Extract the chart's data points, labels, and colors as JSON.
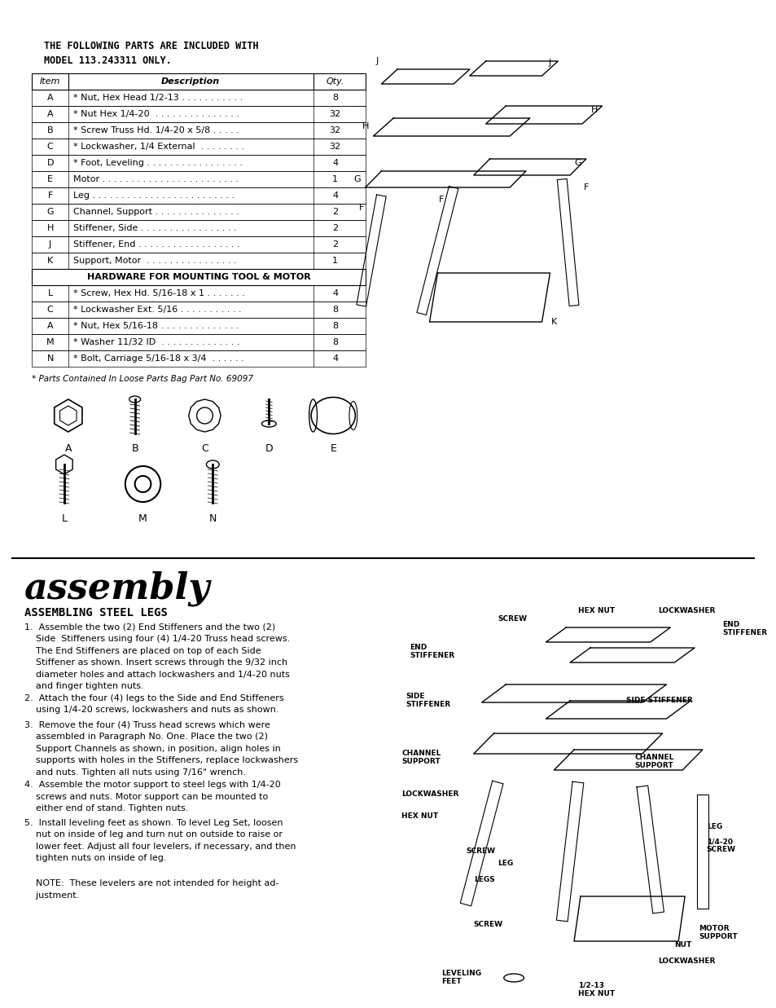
{
  "bg_color": "#ffffff",
  "title_text": "THE FOLLOWING PARTS ARE INCLUDED WITH\nMODEL 113.243311 ONLY.",
  "table_header": [
    "Item",
    "Description",
    "Qty."
  ],
  "table_rows_top": [
    [
      "A",
      "* Nut, Hex Head 1/2-13 . . . . . . . . . . .",
      "8"
    ],
    [
      "A",
      "* Nut Hex 1/4-20  . . . . . . . . . . . . . . .",
      "32"
    ],
    [
      "B",
      "* Screw Truss Hd. 1/4-20 x 5/8 . . . . .",
      "32"
    ],
    [
      "C",
      "* Lockwasher, 1/4 External  . . . . . . . .",
      "32"
    ],
    [
      "D",
      "* Foot, Leveling . . . . . . . . . . . . . . . . .",
      "4"
    ],
    [
      "E",
      "Motor . . . . . . . . . . . . . . . . . . . . . . . .",
      "1"
    ],
    [
      "F",
      "Leg . . . . . . . . . . . . . . . . . . . . . . . . .",
      "4"
    ],
    [
      "G",
      "Channel, Support . . . . . . . . . . . . . . .",
      "2"
    ],
    [
      "H",
      "Stiffener, Side . . . . . . . . . . . . . . . . .",
      "2"
    ],
    [
      "J",
      "Stiffener, End . . . . . . . . . . . . . . . . . .",
      "2"
    ],
    [
      "K",
      "Support, Motor  . . . . . . . . . . . . . . . .",
      "1"
    ]
  ],
  "table_hardware_header": "HARDWARE FOR MOUNTING TOOL & MOTOR",
  "table_rows_bottom": [
    [
      "L",
      "* Screw, Hex Hd. 5/16-18 x 1 . . . . . . .",
      "4"
    ],
    [
      "C",
      "* Lockwasher Ext. 5/16 . . . . . . . . . . .",
      "8"
    ],
    [
      "A",
      "* Nut, Hex 5/16-18 . . . . . . . . . . . . . .",
      "8"
    ],
    [
      "M",
      "* Washer 11/32 ID  . . . . . . . . . . . . . .",
      "8"
    ],
    [
      "N",
      "* Bolt, Carriage 5/16-18 x 3/4  . . . . . .",
      "4"
    ]
  ],
  "footnote": "* Parts Contained In Loose Parts Bag Part No. 69097",
  "parts_labels_row1": [
    "A",
    "B",
    "C",
    "D",
    "E"
  ],
  "parts_labels_row2": [
    "L",
    "M",
    "N"
  ],
  "assembly_title": "assembly",
  "assembly_subtitle": "ASSEMBLING STEEL LEGS",
  "assembly_steps": [
    "1.  Assemble the two (2) End Stiffeners and the two (2)\n    Side  Stiffeners using four (4) 1/4-20 Truss head screws.\n    The End Stiffeners are placed on top of each Side\n    Stiffener as shown. Insert screws through the 9/32 inch\n    diameter holes and attach lockwashers and 1/4-20 nuts\n    and finger tighten nuts.",
    "2.  Attach the four (4) legs to the Side and End Stiffeners\n    using 1/4-20 screws, lockwashers and nuts as shown.",
    "3.  Remove the four (4) Truss head screws which were\n    assembled in Paragraph No. One. Place the two (2)\n    Support Channels as shown, in position, align holes in\n    supports with holes in the Stiffeners, replace lockwashers\n    and nuts. Tighten all nuts using 7/16\" wrench.",
    "4.  Assemble the motor support to steel legs with 1/4-20\n    screws and nuts. Motor support can be mounted to\n    either end of stand. Tighten nuts.",
    "5.  Install leveling feet as shown. To level Leg Set, loosen\n    nut on inside of leg and turn nut on outside to raise or\n    lower feet. Adjust all four levelers, if necessary, and then\n    tighten nuts on inside of leg.",
    "\n    NOTE:  These levelers are not intended for height ad-\n    justment."
  ]
}
